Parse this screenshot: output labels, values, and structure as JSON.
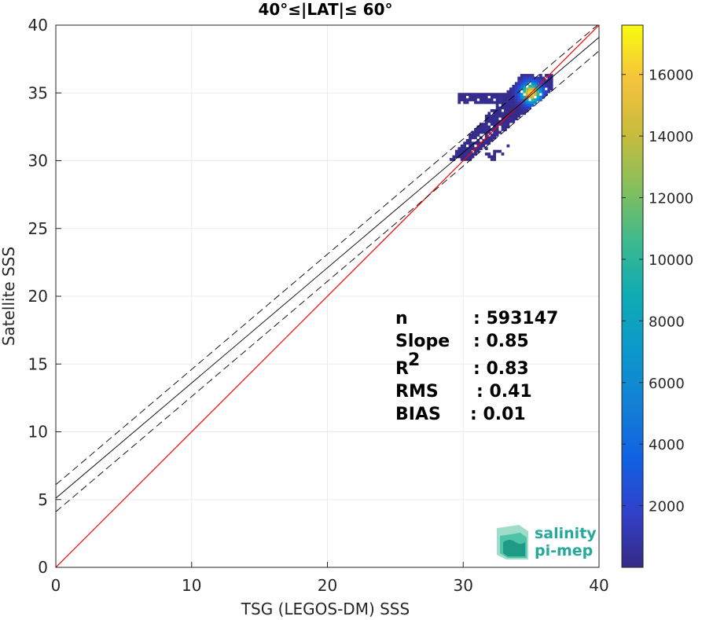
{
  "chart_data": {
    "type": "heatmap",
    "title": "40°≤|LAT|≤ 60°",
    "xlabel": "TSG (LEGOS-DM) SSS",
    "ylabel": "Satellite SSS",
    "xlim": [
      0,
      40
    ],
    "ylim": [
      0,
      40
    ],
    "xticks": [
      "0",
      "10",
      "20",
      "30",
      "40"
    ],
    "yticks": [
      "0",
      "5",
      "10",
      "15",
      "20",
      "25",
      "30",
      "35",
      "40"
    ],
    "grid": true,
    "colorbar": {
      "range": [
        0,
        17600
      ],
      "ticks": [
        "2000",
        "4000",
        "6000",
        "8000",
        "10000",
        "12000",
        "14000",
        "16000"
      ],
      "colormap": "parula"
    },
    "lines": [
      {
        "role": "identity",
        "color": "#ff0000",
        "style": "solid",
        "points": [
          [
            0,
            0
          ],
          [
            40,
            40
          ]
        ]
      },
      {
        "role": "fit",
        "color": "#000000",
        "style": "solid",
        "points": [
          [
            0,
            5.1
          ],
          [
            40,
            39.1
          ]
        ]
      },
      {
        "role": "fit-upper",
        "color": "#000000",
        "style": "dashed",
        "points": [
          [
            0,
            6.1
          ],
          [
            40,
            40.1
          ]
        ]
      },
      {
        "role": "fit-lower",
        "color": "#000000",
        "style": "dashed",
        "points": [
          [
            0,
            4.1
          ],
          [
            40,
            38.1
          ]
        ]
      }
    ],
    "density_region": {
      "x_range": [
        29,
        36.5
      ],
      "y_range": [
        30,
        36.3
      ],
      "peak": {
        "x": 35,
        "y": 35,
        "count": 17000
      }
    },
    "stats": [
      {
        "label": "n",
        "value": ": 593147"
      },
      {
        "label": "Slope",
        "value": ": 0.85"
      },
      {
        "label": "R",
        "sup": "2",
        "value": ": 0.83"
      },
      {
        "label": "RMS",
        "value": ": 0.41"
      },
      {
        "label": "BIAS",
        "value": ": 0.01"
      }
    ]
  },
  "logo": {
    "line1": "salinity",
    "line2": "pi-mep",
    "color": "#26a99a"
  }
}
